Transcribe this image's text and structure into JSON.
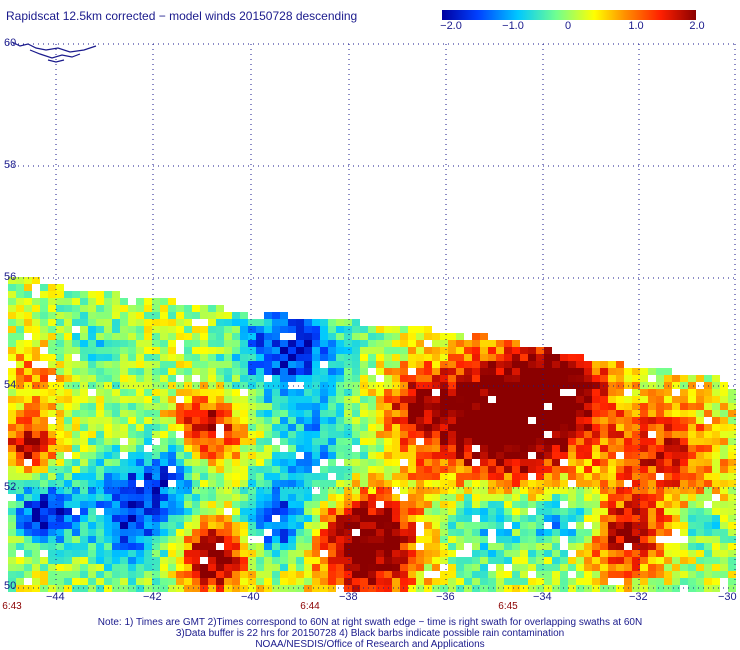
{
  "title": "Rapidscat 12.5km corrected − model winds 20150728 descending",
  "colorbar": {
    "ticks": [
      "−2.0",
      "−1.0",
      "0",
      "1.0",
      "2.0"
    ],
    "range": [
      -2.0,
      2.0
    ],
    "colors": [
      "#0000a0",
      "#0040ff",
      "#00c8ff",
      "#70ff90",
      "#ffff00",
      "#ff9000",
      "#ff2000",
      "#8b0000"
    ]
  },
  "map": {
    "lat_labels": [
      "60",
      "58",
      "56",
      "54",
      "52",
      "50"
    ],
    "lon_labels": [
      "−44",
      "−42",
      "−40",
      "−38",
      "−36",
      "−34",
      "−32",
      "−30"
    ],
    "lat_range": [
      50,
      60
    ],
    "lon_range": [
      -45,
      -30
    ],
    "grid": true,
    "land_color": "#1a1a8c"
  },
  "times": [
    "6:43",
    "6:44",
    "6:45"
  ],
  "notes": [
    "Note: 1) Times are GMT 2)Times correspond to 60N at right swath edge − time is right swath for overlapping swaths at 60N",
    "3)Data buffer is 22 hrs for 20150728 4) Black barbs indicate possible rain contamination",
    "NOAA/NESDIS/Office of Research and Applications"
  ]
}
